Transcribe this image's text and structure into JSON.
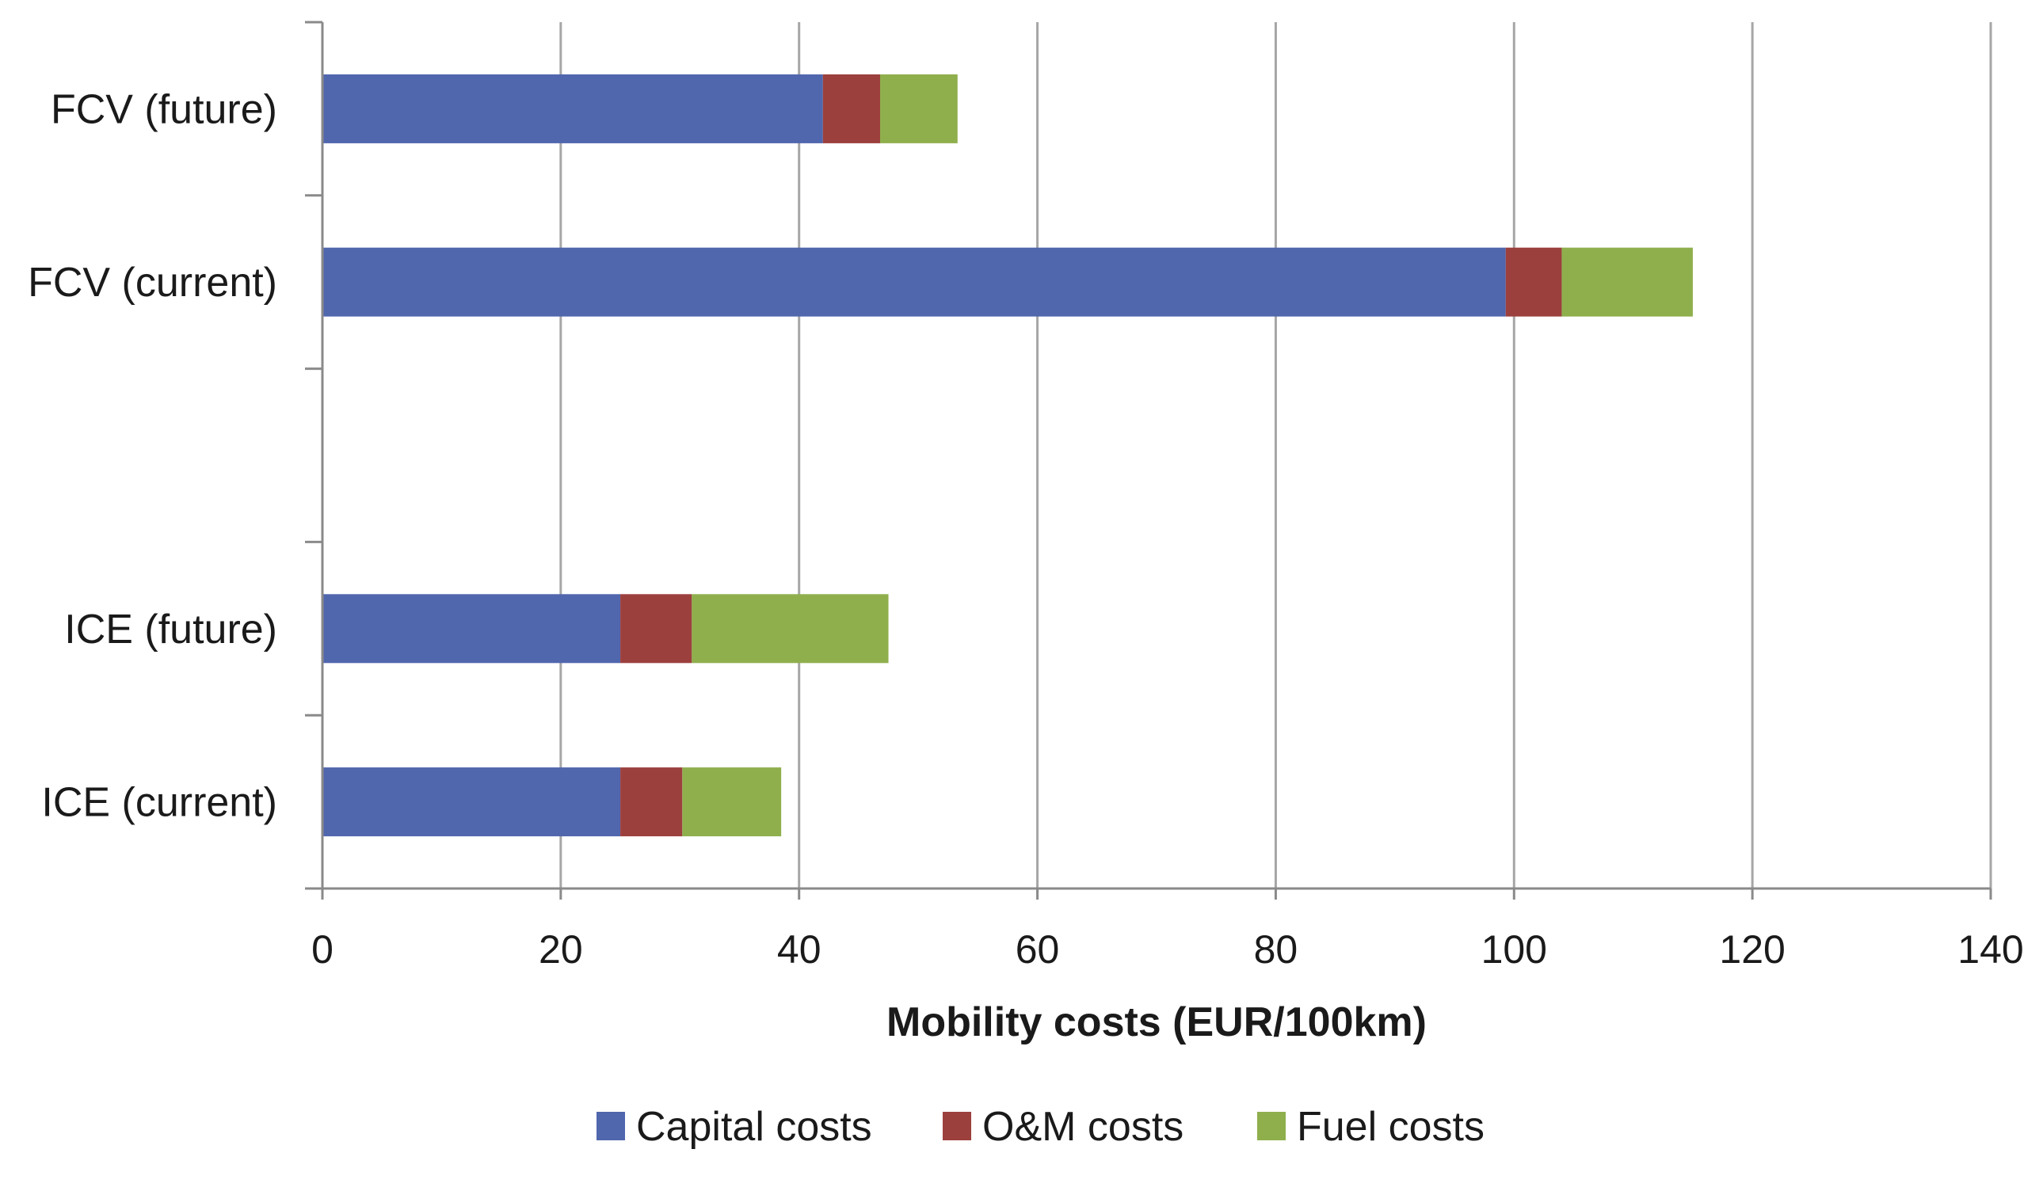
{
  "chart_data": {
    "type": "bar",
    "orientation": "horizontal",
    "stacked": true,
    "title": "",
    "xlabel": "Mobility costs (EUR/100km)",
    "ylabel": "",
    "xlim": [
      0,
      140
    ],
    "xticks": [
      0,
      20,
      40,
      60,
      80,
      100,
      120,
      140
    ],
    "grid": true,
    "legend_position": "bottom",
    "categories": [
      "FCV (future)",
      "FCV (current)",
      "",
      "ICE (future)",
      "ICE (current)"
    ],
    "series": [
      {
        "name": "Capital costs",
        "color": "#5066ad",
        "values": [
          42,
          99.3,
          null,
          25,
          25
        ]
      },
      {
        "name": "O&M costs",
        "color": "#9c403d",
        "values": [
          4.8,
          4.7,
          null,
          6,
          5.2
        ]
      },
      {
        "name": "Fuel costs",
        "color": "#8faf4d",
        "values": [
          6.5,
          11,
          null,
          16.5,
          8.3
        ]
      }
    ]
  }
}
